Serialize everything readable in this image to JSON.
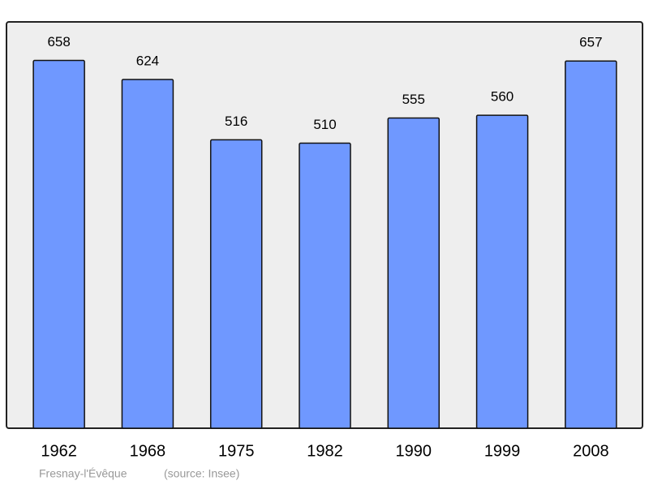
{
  "chart_data": {
    "type": "bar",
    "title": "Fresnay-l'Évêque",
    "source": "(source: Insee)",
    "categories": [
      "1962",
      "1968",
      "1975",
      "1982",
      "1990",
      "1999",
      "2008"
    ],
    "values": [
      658,
      624,
      516,
      510,
      555,
      560,
      657
    ],
    "color": "#6f98ff",
    "ylim": [
      0,
      727
    ]
  }
}
